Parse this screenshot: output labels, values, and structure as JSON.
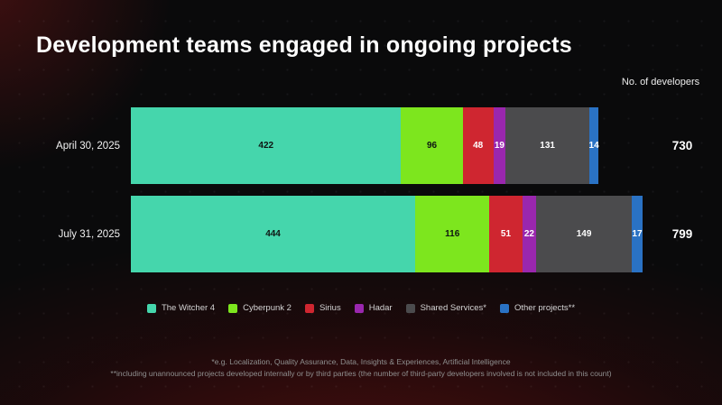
{
  "title": "Development teams engaged in ongoing projects",
  "axis_note": "No. of developers",
  "chart_data": {
    "type": "bar",
    "orientation": "horizontal-stacked",
    "categories": [
      "April 30, 2025",
      "July 31, 2025"
    ],
    "series": [
      {
        "name": "The Witcher 4",
        "color": "#45D6AC",
        "label_color": "#0e1513",
        "values": [
          422,
          444
        ]
      },
      {
        "name": "Cyberpunk 2",
        "color": "#7DE61E",
        "label_color": "#0e1513",
        "values": [
          96,
          116
        ]
      },
      {
        "name": "Sirius",
        "color": "#CF2630",
        "label_color": "#ffffff",
        "values": [
          48,
          51
        ]
      },
      {
        "name": "Hadar",
        "color": "#9A27AE",
        "label_color": "#ffffff",
        "values": [
          19,
          22
        ]
      },
      {
        "name": "Shared Services*",
        "color": "#4B4B4D",
        "label_color": "#ffffff",
        "values": [
          131,
          149
        ]
      },
      {
        "name": "Other projects**",
        "color": "#2A72C4",
        "label_color": "#ffffff",
        "values": [
          14,
          17
        ]
      }
    ],
    "totals": [
      730,
      799
    ],
    "x_max": 799,
    "legend_position": "bottom",
    "grid": false
  },
  "footnotes": [
    "*e.g. Localization, Quality Assurance, Data, Insights & Experiences, Artificial Intelligence",
    "**including unannounced projects developed internally or by third parties (the number of third-party developers involved is not included in this count)"
  ]
}
